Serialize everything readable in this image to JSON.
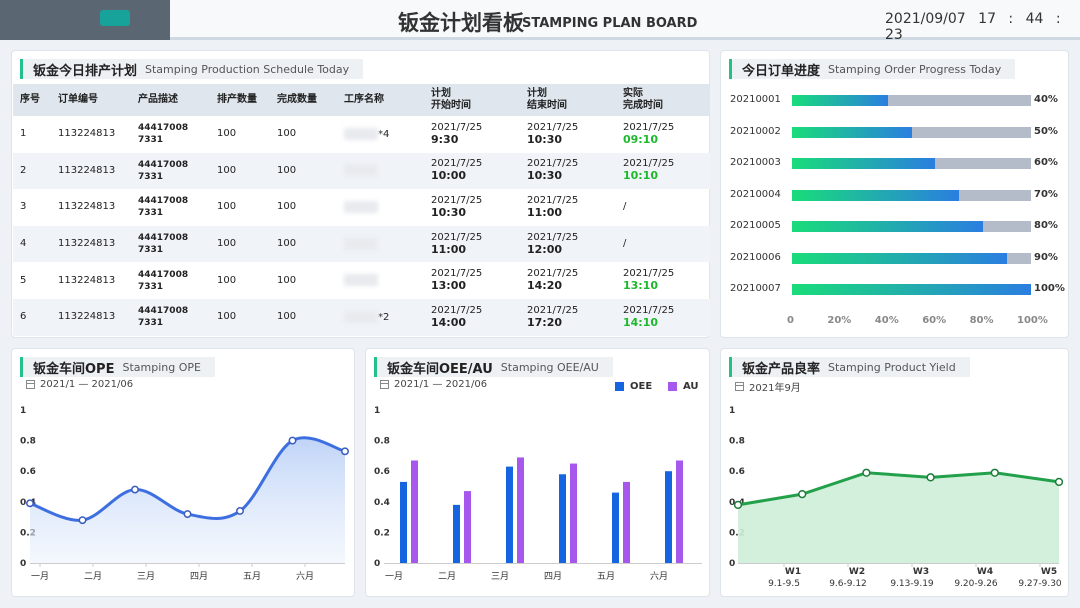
{
  "header": {
    "title_zh": "钣金计划看板",
    "title_en": "STAMPING PLAN BOARD",
    "date": "2021/09/07",
    "time": "17 : 44 : 23"
  },
  "schedule": {
    "title_zh": "钣金今日排产计划",
    "title_en": "Stamping Production Schedule Today",
    "columns": [
      "序号",
      "订单编号",
      "产品描述",
      "排产数量",
      "完成数量",
      "工序名称",
      "计划\n开始时间",
      "计划\n结束时间",
      "实际\n完成时间"
    ],
    "rows": [
      {
        "no": "1",
        "order": "113224813",
        "prod1": "44417008",
        "prod2": "7331",
        "qty": "100",
        "done": "100",
        "proc": "*4",
        "sdate": "2021/7/25",
        "stime": "9:30",
        "edate": "2021/7/25",
        "etime": "10:30",
        "adate": "2021/7/25",
        "atime": "09:10"
      },
      {
        "no": "2",
        "order": "113224813",
        "prod1": "44417008",
        "prod2": "7331",
        "qty": "100",
        "done": "100",
        "proc": "",
        "sdate": "2021/7/25",
        "stime": "10:00",
        "edate": "2021/7/25",
        "etime": "10:30",
        "adate": "2021/7/25",
        "atime": "10:10"
      },
      {
        "no": "3",
        "order": "113224813",
        "prod1": "44417008",
        "prod2": "7331",
        "qty": "100",
        "done": "100",
        "proc": "",
        "sdate": "2021/7/25",
        "stime": "10:30",
        "edate": "2021/7/25",
        "etime": "11:00",
        "adate": "",
        "atime": "/"
      },
      {
        "no": "4",
        "order": "113224813",
        "prod1": "44417008",
        "prod2": "7331",
        "qty": "100",
        "done": "100",
        "proc": "",
        "sdate": "2021/7/25",
        "stime": "11:00",
        "edate": "2021/7/25",
        "etime": "12:00",
        "adate": "",
        "atime": "/"
      },
      {
        "no": "5",
        "order": "113224813",
        "prod1": "44417008",
        "prod2": "7331",
        "qty": "100",
        "done": "100",
        "proc": "",
        "sdate": "2021/7/25",
        "stime": "13:00",
        "edate": "2021/7/25",
        "etime": "14:20",
        "adate": "2021/7/25",
        "atime": "13:10"
      },
      {
        "no": "6",
        "order": "113224813",
        "prod1": "44417008",
        "prod2": "7331",
        "qty": "100",
        "done": "100",
        "proc": "*2",
        "sdate": "2021/7/25",
        "stime": "14:00",
        "edate": "2021/7/25",
        "etime": "17:20",
        "adate": "2021/7/25",
        "atime": "14:10"
      }
    ]
  },
  "progress": {
    "title_zh": "今日订单进度",
    "title_en": "Stamping Order Progress Today",
    "colors": {
      "start": "#19dc7a",
      "end": "#2a7ee0",
      "track": "#b3bcc8"
    },
    "axis": [
      "0",
      "20%",
      "40%",
      "60%",
      "80%",
      "100%"
    ],
    "items": [
      {
        "id": "20210001",
        "pct": 40,
        "label": "40%"
      },
      {
        "id": "20210002",
        "pct": 50,
        "label": "50%"
      },
      {
        "id": "20210003",
        "pct": 60,
        "label": "60%"
      },
      {
        "id": "20210004",
        "pct": 70,
        "label": "70%"
      },
      {
        "id": "20210005",
        "pct": 80,
        "label": "80%"
      },
      {
        "id": "20210006",
        "pct": 90,
        "label": "90%"
      },
      {
        "id": "20210007",
        "pct": 100,
        "label": "100%"
      }
    ]
  },
  "ope": {
    "title_zh": "钣金车间OPE",
    "title_en": "Stamping OPE",
    "date_range": "2021/1 — 2021/06"
  },
  "oee": {
    "title_zh": "钣金车间OEE/AU",
    "title_en": "Stamping OEE/AU",
    "date_range": "2021/1 — 2021/06",
    "legend_oee": "OEE",
    "legend_au": "AU"
  },
  "yield": {
    "title_zh": "钣金产品良率",
    "title_en": "Stamping Product Yield",
    "date_range": "2021年9月"
  },
  "chart_data": [
    {
      "type": "line",
      "categories": [
        "一月",
        "二月",
        "三月",
        "四月",
        "五月",
        "六月",
        ""
      ],
      "values": [
        0.39,
        0.28,
        0.48,
        0.32,
        0.34,
        0.8,
        0.73
      ],
      "yticks": [
        "0",
        "0.2",
        "0.4",
        "0.6",
        "0.8",
        "1"
      ],
      "ylim": [
        0,
        1
      ],
      "color": "#3d6fe0"
    },
    {
      "type": "bar",
      "categories": [
        "一月",
        "二月",
        "三月",
        "四月",
        "五月",
        "六月"
      ],
      "series": [
        {
          "name": "OEE",
          "values": [
            0.53,
            0.38,
            0.63,
            0.58,
            0.46,
            0.6
          ],
          "color": "#1565e0"
        },
        {
          "name": "AU",
          "values": [
            0.67,
            0.47,
            0.69,
            0.65,
            0.53,
            0.67
          ],
          "color": "#a658ec"
        }
      ],
      "yticks": [
        "0",
        "0.2",
        "0.4",
        "0.6",
        "0.8",
        "1"
      ],
      "ylim": [
        0,
        1
      ]
    },
    {
      "type": "area",
      "categories": [
        "W1",
        "W2",
        "W3",
        "W4",
        "W5"
      ],
      "sublabels": [
        "9.1-9.5",
        "9.6-9.12",
        "9.13-9.19",
        "9.20-9.26",
        "9.27-9.30"
      ],
      "x": [
        0,
        1,
        2,
        3,
        4,
        5
      ],
      "values": [
        0.38,
        0.45,
        0.59,
        0.56,
        0.59,
        0.53
      ],
      "yticks": [
        "0",
        "0.2",
        "0.4",
        "0.6",
        "0.8",
        "1"
      ],
      "ylim": [
        0,
        1
      ],
      "color": "#22a04a"
    }
  ]
}
